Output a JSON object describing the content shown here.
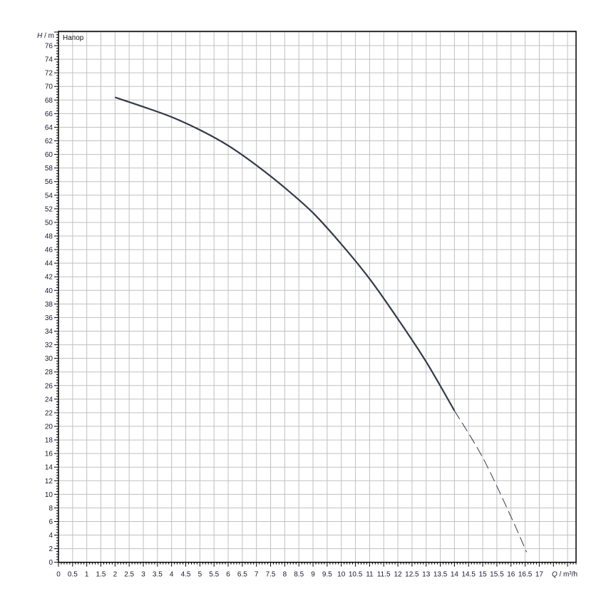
{
  "chart_data": {
    "type": "line",
    "title": "",
    "curve_label": "Напор",
    "xlabel": {
      "symbol": "Q",
      "unit": " / m³/h"
    },
    "ylabel": {
      "symbol": "H",
      "unit": " / m"
    },
    "xlim": [
      0,
      18.3
    ],
    "ylim": [
      0,
      78.1
    ],
    "x_major_step": 0.5,
    "y_major_step": 2,
    "x_tick_labels": [
      "0",
      "0.5",
      "1",
      "1.5",
      "2",
      "2.5",
      "3",
      "3.5",
      "4",
      "4.5",
      "5",
      "5.5",
      "6",
      "6.5",
      "7",
      "7.5",
      "8",
      "8.5",
      "9",
      "9.5",
      "10",
      "10.5",
      "11",
      "11.5",
      "12",
      "12.5",
      "13",
      "13.5",
      "14",
      "14.5",
      "15",
      "15.5",
      "16",
      "16.5",
      "17"
    ],
    "y_tick_labels": [
      "0",
      "2",
      "4",
      "6",
      "8",
      "10",
      "12",
      "14",
      "16",
      "18",
      "20",
      "22",
      "24",
      "26",
      "28",
      "30",
      "32",
      "34",
      "36",
      "38",
      "40",
      "42",
      "44",
      "46",
      "48",
      "50",
      "52",
      "54",
      "56",
      "58",
      "60",
      "62",
      "64",
      "66",
      "68",
      "70",
      "72",
      "74",
      "76"
    ],
    "grid": true,
    "line_color": "#333a48",
    "grid_color": "#c0c0c0",
    "series": [
      {
        "style": "solid",
        "x": [
          2,
          3,
          4,
          5,
          6,
          7,
          8,
          9,
          10,
          11,
          12,
          13,
          14
        ],
        "y": [
          68.4,
          67.0,
          65.5,
          63.6,
          61.3,
          58.4,
          55.1,
          51.4,
          46.8,
          41.7,
          35.8,
          29.5,
          22.3
        ]
      },
      {
        "style": "dashed",
        "x": [
          14,
          15,
          16,
          16.55
        ],
        "y": [
          22.3,
          15.4,
          6.7,
          1.5
        ]
      }
    ]
  }
}
